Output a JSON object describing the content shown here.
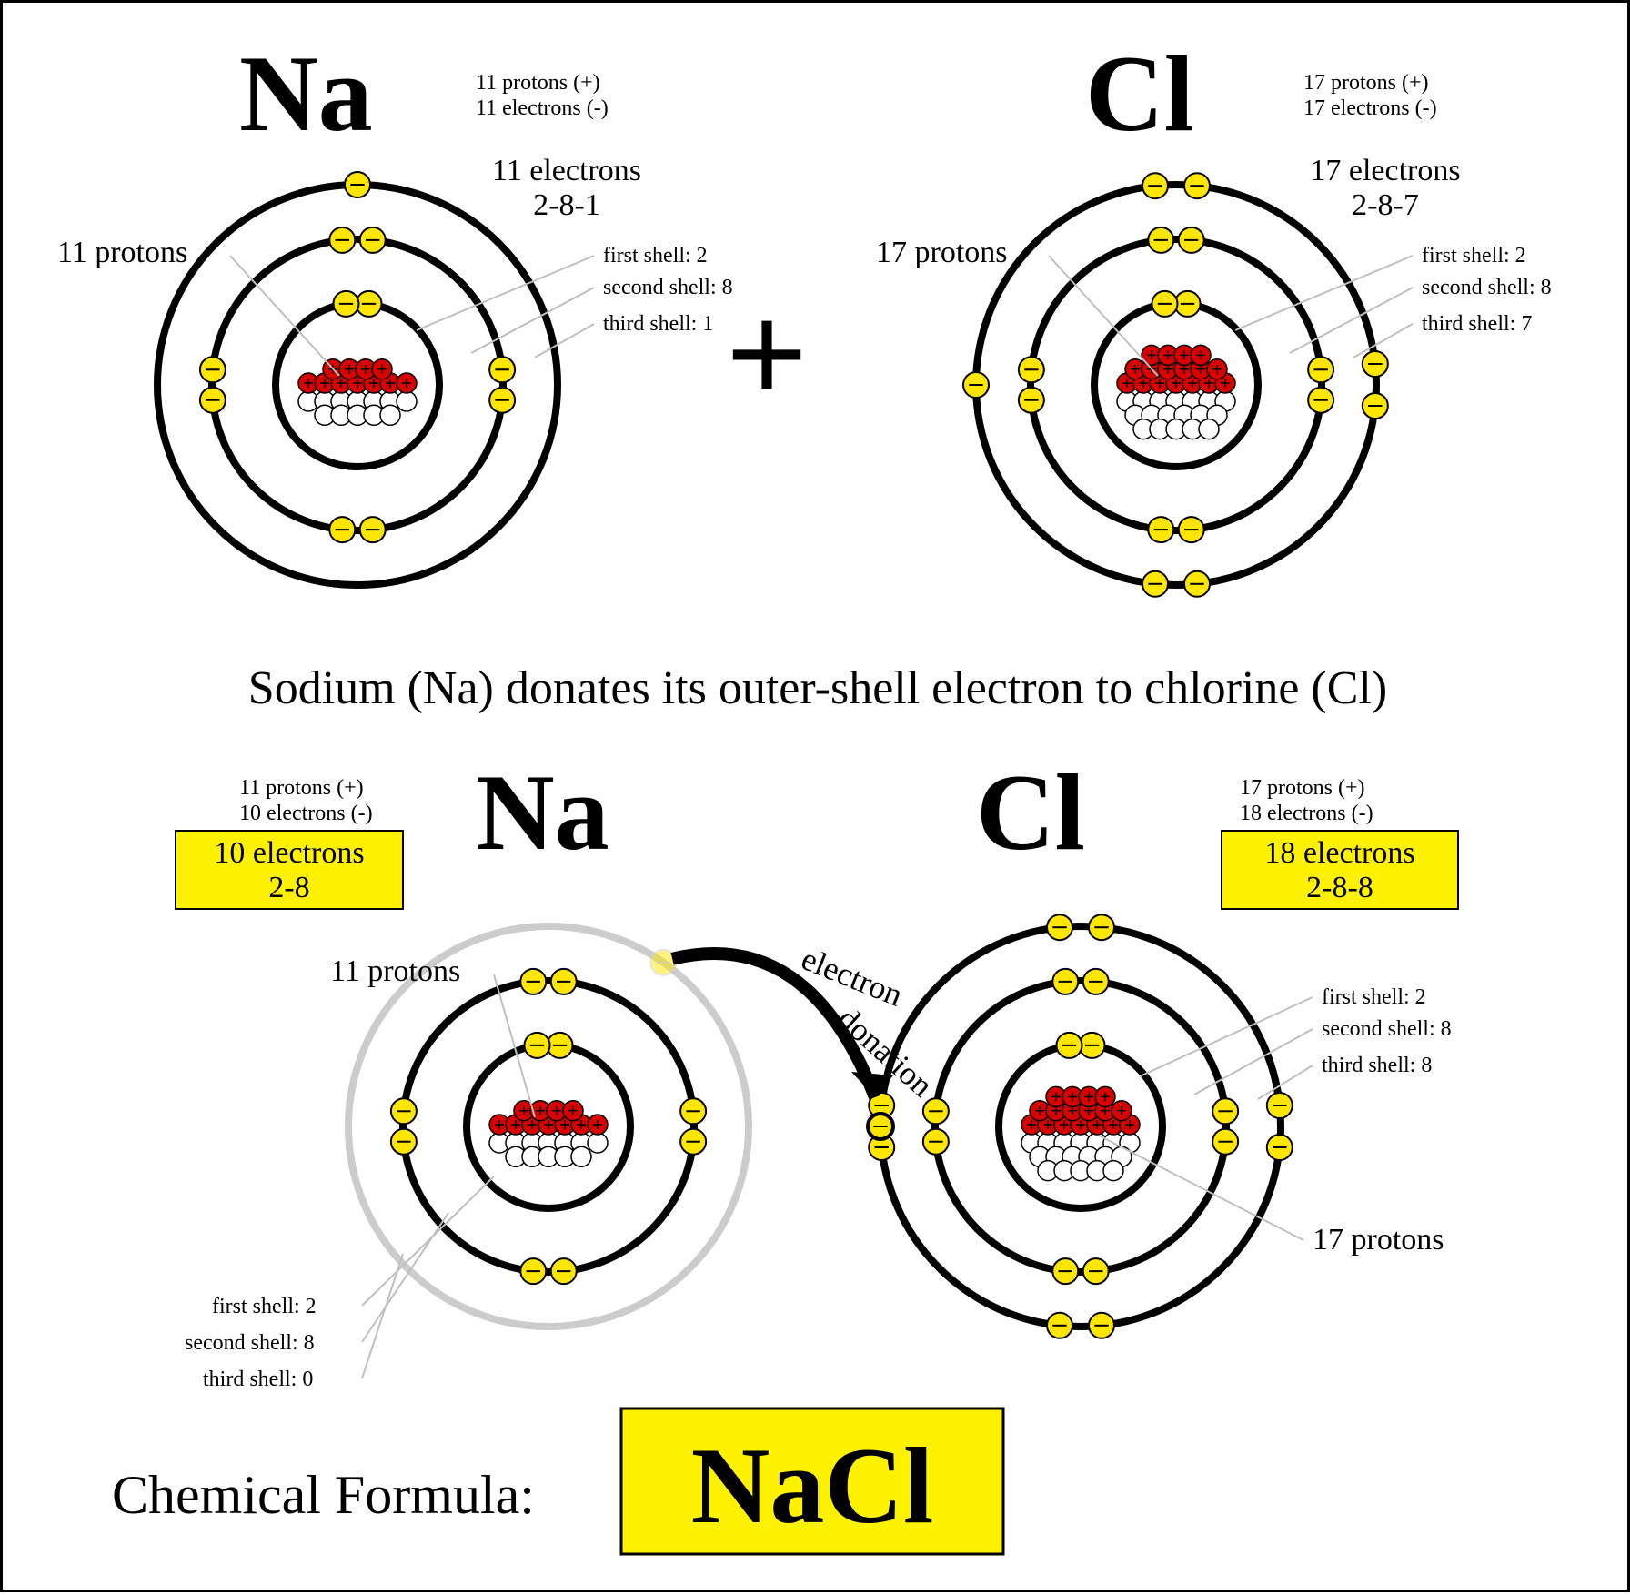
{
  "colors": {
    "background": "#ffffff",
    "stroke": "#000000",
    "electron_fill": "#ffe600",
    "proton_fill": "#d80000",
    "neutron_fill": "#ffffff",
    "highlight": "#fff200",
    "faded_shell": "#cccccc",
    "leader_line": "#bfbfbf"
  },
  "style": {
    "shell_stroke_width": 8,
    "electron_radius": 14,
    "nucleon_radius": 11,
    "shell_radii": [
      90,
      160,
      220
    ],
    "atom_circle_center_offset": 0
  },
  "top": {
    "caption": "Sodium (Na) donates its outer-shell electron to chlorine (Cl)",
    "plus": "+",
    "sodium": {
      "symbol": "Na",
      "charge_lines": {
        "protons": "11 protons (+)",
        "electrons": "11 electrons (-)"
      },
      "electron_header": "11 electrons",
      "electron_config": "2-8-1",
      "shell_labels": {
        "first": "first shell: 2",
        "second": "second shell: 8",
        "third": "third shell: 1"
      },
      "proton_label": "11 protons",
      "protons": 11,
      "neutrons": 12,
      "shells": [
        2,
        8,
        1
      ]
    },
    "chlorine": {
      "symbol": "Cl",
      "charge_lines": {
        "protons": "17 protons (+)",
        "electrons": "17 electrons (-)"
      },
      "electron_header": "17 electrons",
      "electron_config": "2-8-7",
      "shell_labels": {
        "first": "first shell: 2",
        "second": "second shell: 8",
        "third": "third shell: 7"
      },
      "proton_label": "17 protons",
      "protons": 17,
      "neutrons": 18,
      "shells": [
        2,
        8,
        7
      ]
    }
  },
  "bottom": {
    "sodium": {
      "symbol": "Na",
      "charge_lines": {
        "protons": "11 protons (+)",
        "electrons": "10 electrons (-)"
      },
      "highlight_box": {
        "line1": "10 electrons",
        "line2": "2-8"
      },
      "proton_label": "11 protons",
      "shell_labels": {
        "first": "first shell: 2",
        "second": "second shell: 8",
        "third": "third shell: 0"
      },
      "protons": 11,
      "neutrons": 12,
      "shells": [
        2,
        8,
        0
      ],
      "outer_shell_faded": true
    },
    "chlorine": {
      "symbol": "Cl",
      "charge_lines": {
        "protons": "17 protons (+)",
        "electrons": "18 electrons (-)"
      },
      "highlight_box": {
        "line1": "18 electrons",
        "line2": "2-8-8"
      },
      "proton_label": "17 protons",
      "shell_labels": {
        "first": "first shell: 2",
        "second": "second shell: 8",
        "third": "third shell: 8"
      },
      "protons": 17,
      "neutrons": 18,
      "shells": [
        2,
        8,
        8
      ]
    },
    "donation_label": {
      "line1": "electron",
      "line2": "donation"
    },
    "formula_label": "Chemical Formula:",
    "formula": "NaCl"
  }
}
